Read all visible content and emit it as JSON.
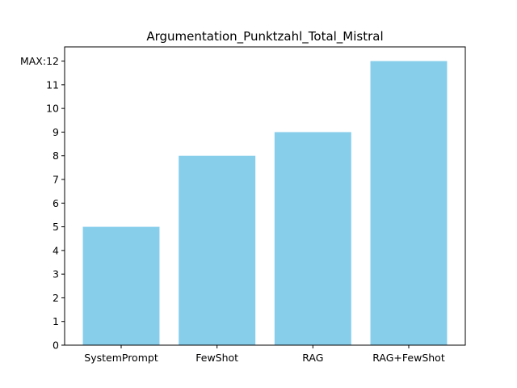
{
  "chart_data": {
    "type": "bar",
    "title": "Argumentation_Punktzahl_Total_Mistral",
    "categories": [
      "SystemPrompt",
      "FewShot",
      "RAG",
      "RAG+FewShot"
    ],
    "values": [
      5,
      8,
      9,
      12
    ],
    "ylim": [
      0,
      12
    ],
    "yticks": [
      0,
      1,
      2,
      3,
      4,
      5,
      6,
      7,
      8,
      9,
      10,
      11,
      12
    ],
    "ytick_labels": [
      "0",
      "1",
      "2",
      "3",
      "4",
      "5",
      "6",
      "7",
      "8",
      "9",
      "10",
      "11",
      "MAX:12"
    ],
    "xlabel": "",
    "ylabel": "",
    "grid": false,
    "bar_color": "#87ceeb"
  }
}
